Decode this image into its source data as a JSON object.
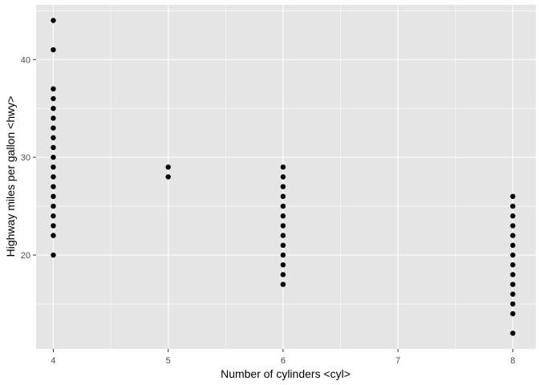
{
  "chart_data": {
    "type": "scatter",
    "title": "",
    "xlabel": "Number of cylinders <cyl>",
    "ylabel": "Highway miles per gallon <hwy>",
    "xlim": [
      3.85,
      8.2
    ],
    "ylim": [
      10.4,
      45.6
    ],
    "x_ticks": [
      4,
      5,
      6,
      7,
      8
    ],
    "y_ticks": [
      20,
      30,
      40
    ],
    "grid": true,
    "panel_background": "#e5e5e5",
    "grid_color": "#ffffff",
    "point_color": "#000000",
    "series": [
      {
        "points": [
          [
            4,
            20
          ],
          [
            4,
            22
          ],
          [
            4,
            23
          ],
          [
            4,
            24
          ],
          [
            4,
            25
          ],
          [
            4,
            26
          ],
          [
            4,
            27
          ],
          [
            4,
            28
          ],
          [
            4,
            29
          ],
          [
            4,
            30
          ],
          [
            4,
            31
          ],
          [
            4,
            32
          ],
          [
            4,
            33
          ],
          [
            4,
            34
          ],
          [
            4,
            35
          ],
          [
            4,
            36
          ],
          [
            4,
            37
          ],
          [
            4,
            41
          ],
          [
            4,
            44
          ],
          [
            5,
            28
          ],
          [
            5,
            29
          ],
          [
            6,
            17
          ],
          [
            6,
            18
          ],
          [
            6,
            19
          ],
          [
            6,
            20
          ],
          [
            6,
            21
          ],
          [
            6,
            22
          ],
          [
            6,
            23
          ],
          [
            6,
            24
          ],
          [
            6,
            25
          ],
          [
            6,
            26
          ],
          [
            6,
            27
          ],
          [
            6,
            28
          ],
          [
            6,
            29
          ],
          [
            8,
            12
          ],
          [
            8,
            14
          ],
          [
            8,
            15
          ],
          [
            8,
            16
          ],
          [
            8,
            17
          ],
          [
            8,
            18
          ],
          [
            8,
            19
          ],
          [
            8,
            20
          ],
          [
            8,
            21
          ],
          [
            8,
            22
          ],
          [
            8,
            23
          ],
          [
            8,
            24
          ],
          [
            8,
            25
          ],
          [
            8,
            26
          ]
        ]
      }
    ]
  }
}
